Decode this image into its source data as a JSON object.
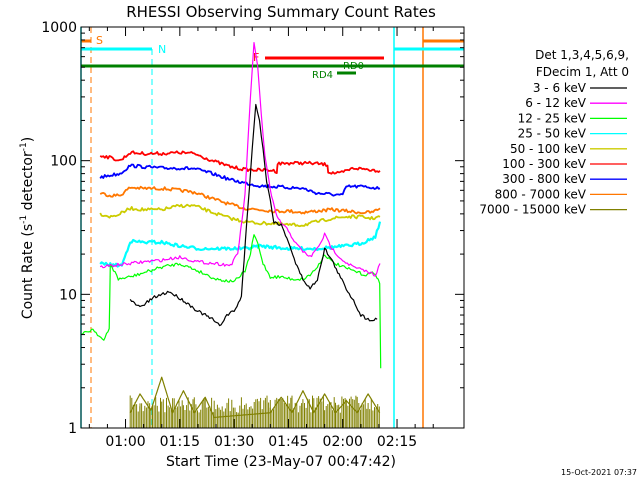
{
  "page": {
    "title": "RHESSI Observing Summary Count Rates",
    "xlabel": "Start Time (23-May-07 00:47:42)",
    "ylabel": "Count Rate (s",
    "ylabel_sup": "-1",
    "ylabel_tail": " detector",
    "ylabel_sup2": "-1",
    "ylabel_close": ")",
    "timestamp": "15-Oct-2021 07:37"
  },
  "chart_data": {
    "type": "line",
    "title": "RHESSI Observing Summary Count Rates",
    "xlabel": "Start Time (23-May-07 00:47:42)",
    "ylabel": "Count Rate (s^-1 detector^-1)",
    "yscale": "log",
    "ylim": [
      1,
      1000
    ],
    "xlim_min": [
      47.7,
      153.5
    ],
    "x_unit": "minutes after 00:00 UT, 23-May-07",
    "xticks": [
      {
        "min": 60,
        "label": "01:00"
      },
      {
        "min": 75,
        "label": "01:15"
      },
      {
        "min": 90,
        "label": "01:30"
      },
      {
        "min": 105,
        "label": "01:45"
      },
      {
        "min": 120,
        "label": "02:00"
      },
      {
        "min": 135,
        "label": "02:15"
      }
    ],
    "yticks": [
      {
        "value": 1,
        "label": "1"
      },
      {
        "value": 10,
        "label": "10"
      },
      {
        "value": 100,
        "label": "100"
      },
      {
        "value": 1000,
        "label": "1000"
      }
    ],
    "legend_header": [
      "Det 1,3,4,5,6,9,",
      "FDecim 1, Att 0"
    ],
    "series": [
      {
        "name": "3 - 6 keV",
        "color": "#000000",
        "points": [
          [
            61.3,
            9.0
          ],
          [
            64,
            8.0
          ],
          [
            68,
            9.5
          ],
          [
            72,
            10.5
          ],
          [
            76,
            9.0
          ],
          [
            80,
            7.5
          ],
          [
            84,
            6.5
          ],
          [
            86,
            5.8
          ],
          [
            88,
            7.0
          ],
          [
            90,
            7.5
          ],
          [
            92,
            9.5
          ],
          [
            93.5,
            35
          ],
          [
            95,
            120
          ],
          [
            96,
            270
          ],
          [
            97,
            200
          ],
          [
            98,
            120
          ],
          [
            99,
            70
          ],
          [
            100,
            50
          ],
          [
            101,
            35
          ],
          [
            103,
            33
          ],
          [
            105,
            25
          ],
          [
            107,
            17
          ],
          [
            109,
            13
          ],
          [
            111,
            11
          ],
          [
            113,
            13
          ],
          [
            115,
            22
          ],
          [
            117,
            18
          ],
          [
            119,
            14
          ],
          [
            121,
            11
          ],
          [
            123,
            9
          ],
          [
            125,
            7
          ],
          [
            127,
            6.5
          ],
          [
            129.5,
            6.5
          ]
        ]
      },
      {
        "name": "6 - 12 keV",
        "color": "#ff00ff",
        "points": [
          [
            53,
            16
          ],
          [
            57,
            16.5
          ],
          [
            61.3,
            17
          ],
          [
            65,
            17.5
          ],
          [
            70,
            18
          ],
          [
            75,
            19
          ],
          [
            80,
            17.5
          ],
          [
            85,
            17
          ],
          [
            89,
            16.5
          ],
          [
            91,
            20
          ],
          [
            93,
            55
          ],
          [
            94.5,
            300
          ],
          [
            95.5,
            750
          ],
          [
            96.5,
            500
          ],
          [
            97.5,
            220
          ],
          [
            98.5,
            110
          ],
          [
            100,
            60
          ],
          [
            101.5,
            40
          ],
          [
            103,
            34
          ],
          [
            105,
            30
          ],
          [
            107,
            24
          ],
          [
            109,
            21
          ],
          [
            111,
            19
          ],
          [
            113,
            22
          ],
          [
            115,
            28
          ],
          [
            117,
            22
          ],
          [
            120,
            18
          ],
          [
            123,
            16
          ],
          [
            126,
            15
          ],
          [
            129,
            14
          ],
          [
            130.3,
            17
          ]
        ]
      },
      {
        "name": "12 - 25 keV",
        "color": "#00ff00",
        "points": [
          [
            47.8,
            5.0
          ],
          [
            51,
            5.5
          ],
          [
            54,
            4.5
          ],
          [
            55.5,
            5.5
          ],
          [
            55.8,
            17
          ],
          [
            58,
            13
          ],
          [
            61.3,
            13.5
          ],
          [
            65,
            14.5
          ],
          [
            70,
            16
          ],
          [
            75,
            17
          ],
          [
            80,
            15
          ],
          [
            85,
            13
          ],
          [
            89,
            12.5
          ],
          [
            91,
            13
          ],
          [
            93,
            15
          ],
          [
            94.5,
            20
          ],
          [
            95.5,
            28
          ],
          [
            96.5,
            24
          ],
          [
            98,
            17
          ],
          [
            100,
            13.5
          ],
          [
            103,
            13.5
          ],
          [
            106,
            13
          ],
          [
            109,
            13
          ],
          [
            111,
            14
          ],
          [
            113,
            16
          ],
          [
            115,
            20
          ],
          [
            117,
            17.5
          ],
          [
            120,
            16
          ],
          [
            123,
            15
          ],
          [
            126,
            14
          ],
          [
            129,
            14.5
          ],
          [
            130.2,
            12
          ],
          [
            130.5,
            2.8
          ]
        ]
      },
      {
        "name": "25 - 50 keV",
        "color": "#00ffff",
        "points": [
          [
            53,
            17
          ],
          [
            57,
            16.5
          ],
          [
            59,
            16.5
          ],
          [
            61.3,
            25
          ],
          [
            65,
            24.5
          ],
          [
            70,
            24.5
          ],
          [
            75,
            23
          ],
          [
            80,
            22
          ],
          [
            85,
            22
          ],
          [
            89,
            22
          ],
          [
            93,
            22
          ],
          [
            97,
            23
          ],
          [
            101,
            22.5
          ],
          [
            105,
            22
          ],
          [
            109,
            22
          ],
          [
            113,
            22
          ],
          [
            117,
            22.5
          ],
          [
            121,
            23
          ],
          [
            125,
            24
          ],
          [
            129,
            27
          ],
          [
            130.3,
            35
          ]
        ]
      },
      {
        "name": "50 - 100 keV",
        "color": "#cccc00",
        "points": [
          [
            53,
            40
          ],
          [
            56,
            38
          ],
          [
            58.5,
            40
          ],
          [
            61.3,
            44
          ],
          [
            65,
            43
          ],
          [
            70,
            43
          ],
          [
            75,
            46
          ],
          [
            79,
            46
          ],
          [
            84,
            41
          ],
          [
            89,
            37
          ],
          [
            93,
            35
          ],
          [
            97,
            34
          ],
          [
            101,
            34
          ],
          [
            105,
            33
          ],
          [
            109,
            33
          ],
          [
            113,
            35
          ],
          [
            117,
            37
          ],
          [
            121,
            38
          ],
          [
            125,
            38
          ],
          [
            128,
            37
          ],
          [
            130.3,
            38
          ]
        ]
      },
      {
        "name": "100 - 300 keV",
        "color": "#ff0000",
        "points": [
          [
            53,
            110
          ],
          [
            56,
            105
          ],
          [
            58.5,
            100
          ],
          [
            61.3,
            115
          ],
          [
            65,
            113
          ],
          [
            70,
            113
          ],
          [
            75,
            115
          ],
          [
            79,
            113
          ],
          [
            84,
            100
          ],
          [
            89,
            90
          ],
          [
            93,
            86
          ],
          [
            97,
            85
          ],
          [
            100,
            85
          ],
          [
            101.8,
            83
          ],
          [
            102,
            95
          ],
          [
            106,
            96
          ],
          [
            110,
            96
          ],
          [
            113,
            95
          ],
          [
            115.8,
            93
          ],
          [
            116,
            82
          ],
          [
            119,
            80
          ],
          [
            123,
            88
          ],
          [
            127,
            86
          ],
          [
            130.3,
            84
          ]
        ]
      },
      {
        "name": "300 - 800 keV",
        "color": "#0000ff",
        "points": [
          [
            53,
            75
          ],
          [
            56,
            78
          ],
          [
            58.5,
            80
          ],
          [
            61.3,
            92
          ],
          [
            65,
            90
          ],
          [
            70,
            88
          ],
          [
            75,
            88
          ],
          [
            79,
            87
          ],
          [
            84,
            80
          ],
          [
            89,
            72
          ],
          [
            93,
            68
          ],
          [
            97,
            65
          ],
          [
            101,
            64
          ],
          [
            105,
            63
          ],
          [
            109,
            62
          ],
          [
            113,
            57
          ],
          [
            117,
            56
          ],
          [
            120,
            55
          ],
          [
            121,
            64
          ],
          [
            125,
            64
          ],
          [
            128,
            63
          ],
          [
            130.3,
            62
          ]
        ]
      },
      {
        "name": "800 - 7000 keV",
        "color": "#ff7700",
        "points": [
          [
            53,
            57
          ],
          [
            56,
            55
          ],
          [
            58.5,
            55
          ],
          [
            61.3,
            63
          ],
          [
            65,
            62
          ],
          [
            70,
            62
          ],
          [
            75,
            60
          ],
          [
            79,
            58
          ],
          [
            84,
            52
          ],
          [
            89,
            47
          ],
          [
            93,
            44
          ],
          [
            97,
            43
          ],
          [
            101,
            42
          ],
          [
            105,
            42
          ],
          [
            109,
            41
          ],
          [
            113,
            42
          ],
          [
            117,
            43
          ],
          [
            121,
            42
          ],
          [
            125,
            41
          ],
          [
            128,
            41
          ],
          [
            130.3,
            44
          ]
        ]
      },
      {
        "name": "7000 - 15000 keV",
        "color": "#808000",
        "points": [
          [
            61.3,
            1.3
          ],
          [
            64,
            1.8
          ],
          [
            67,
            1.35
          ],
          [
            70,
            2.4
          ],
          [
            73,
            1.3
          ],
          [
            76,
            1.9
          ],
          [
            79,
            1.3
          ],
          [
            82,
            1.7
          ],
          [
            84.5,
            1.2
          ],
          [
            100,
            1.3
          ],
          [
            103,
            1.7
          ],
          [
            106,
            1.3
          ],
          [
            109,
            1.9
          ],
          [
            112,
            1.3
          ],
          [
            115,
            1.8
          ],
          [
            118,
            1.3
          ],
          [
            121,
            1.6
          ],
          [
            124,
            1.3
          ],
          [
            127,
            1.8
          ],
          [
            130.2,
            1.3
          ]
        ]
      }
    ],
    "annotations": [
      {
        "label": "S",
        "color": "#ff7700"
      },
      {
        "label": "N",
        "color": "#00ffff"
      },
      {
        "label": "F",
        "color": "#ff0000"
      },
      {
        "label": "RD0",
        "color": "#008000"
      },
      {
        "label": "RD4",
        "color": "#008000"
      }
    ]
  }
}
